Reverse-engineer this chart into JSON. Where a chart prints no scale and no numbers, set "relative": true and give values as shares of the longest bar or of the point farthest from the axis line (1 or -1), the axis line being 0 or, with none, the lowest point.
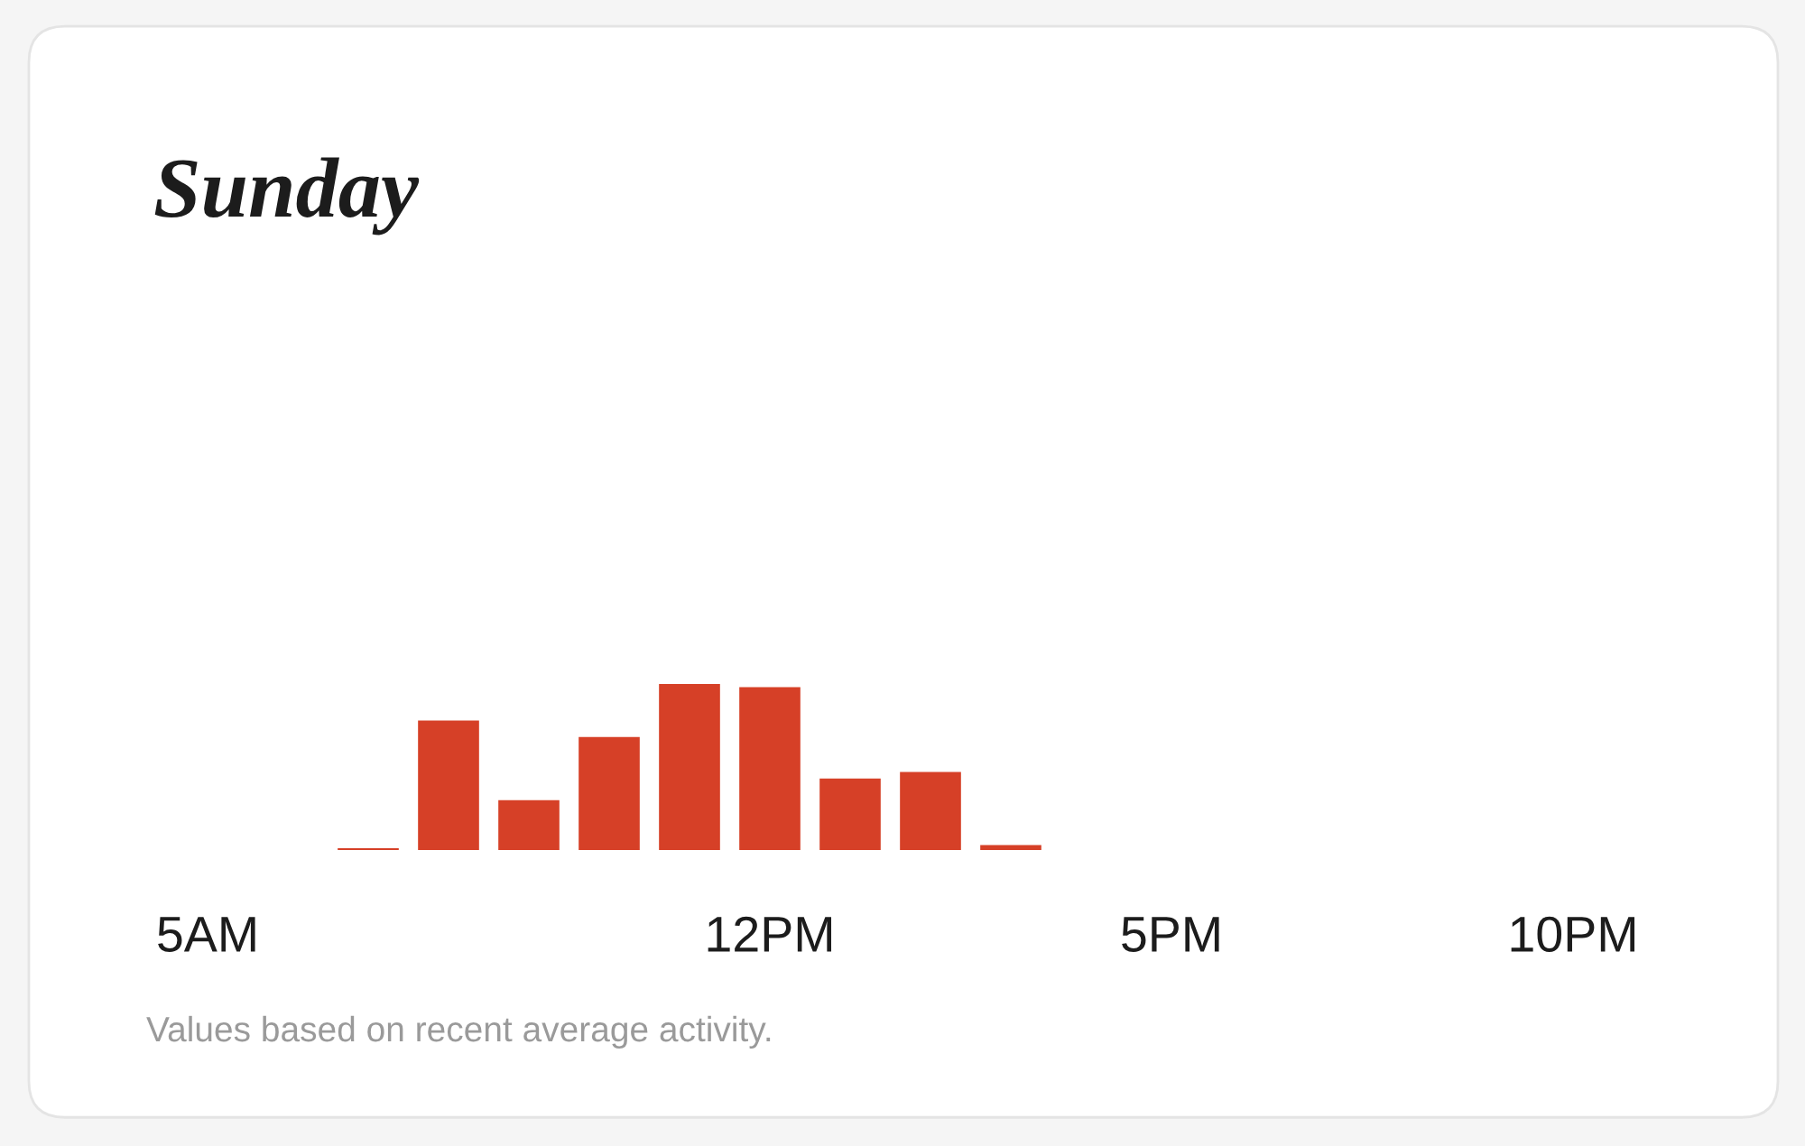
{
  "chart_data": {
    "type": "bar",
    "title": "Sunday",
    "categories": [
      "5AM",
      null,
      null,
      null,
      null,
      null,
      null,
      "12PM",
      null,
      null,
      null,
      null,
      "5PM",
      null,
      null,
      null,
      null,
      "10PM"
    ],
    "values": [
      0,
      0,
      0.01,
      0.78,
      0.3,
      0.68,
      1,
      0.98,
      0.43,
      0.47,
      0.03,
      0,
      0,
      0,
      0,
      0,
      0,
      0
    ],
    "color": "#d64027",
    "relative": true,
    "grid": false,
    "annotations": [
      "Values based on recent average activity."
    ]
  }
}
